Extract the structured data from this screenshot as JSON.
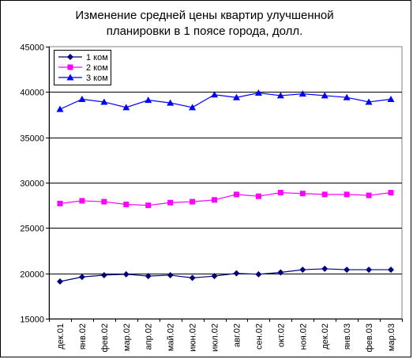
{
  "chart_data": {
    "type": "line",
    "title_lines": [
      "Изменение средней цены квартир улучшенной",
      "планировки в 1 поясе города, долл."
    ],
    "categories": [
      "дек.01",
      "янв.02",
      "фев.02",
      "мар.02",
      "апр.02",
      "май.02",
      "июн.02",
      "июл.02",
      "авг.02",
      "сен.02",
      "окт.02",
      "ноя.02",
      "дек.02",
      "янв.03",
      "фев.03",
      "мар.03"
    ],
    "ylim": [
      15000,
      45000
    ],
    "yticks": [
      15000,
      20000,
      25000,
      30000,
      35000,
      40000,
      45000
    ],
    "grid": "horizontal",
    "legend_placement": "top-left",
    "series": [
      {
        "name": "1 ком",
        "color": "#000080",
        "marker": "diamond",
        "values": [
          19100,
          19600,
          19800,
          19900,
          19700,
          19800,
          19500,
          19700,
          20000,
          19900,
          20100,
          20400,
          20500,
          20400,
          20400,
          20400
        ]
      },
      {
        "name": "2 ком",
        "color": "#FF00FF",
        "marker": "square",
        "values": [
          27700,
          28000,
          27900,
          27600,
          27500,
          27800,
          27900,
          28100,
          28700,
          28500,
          28900,
          28800,
          28700,
          28700,
          28600,
          28900
        ]
      },
      {
        "name": "3 ком",
        "color": "#0000FF",
        "marker": "triangle",
        "values": [
          38100,
          39200,
          38900,
          38300,
          39100,
          38800,
          38300,
          39700,
          39400,
          39900,
          39600,
          39800,
          39600,
          39400,
          38900,
          39200
        ]
      }
    ]
  }
}
